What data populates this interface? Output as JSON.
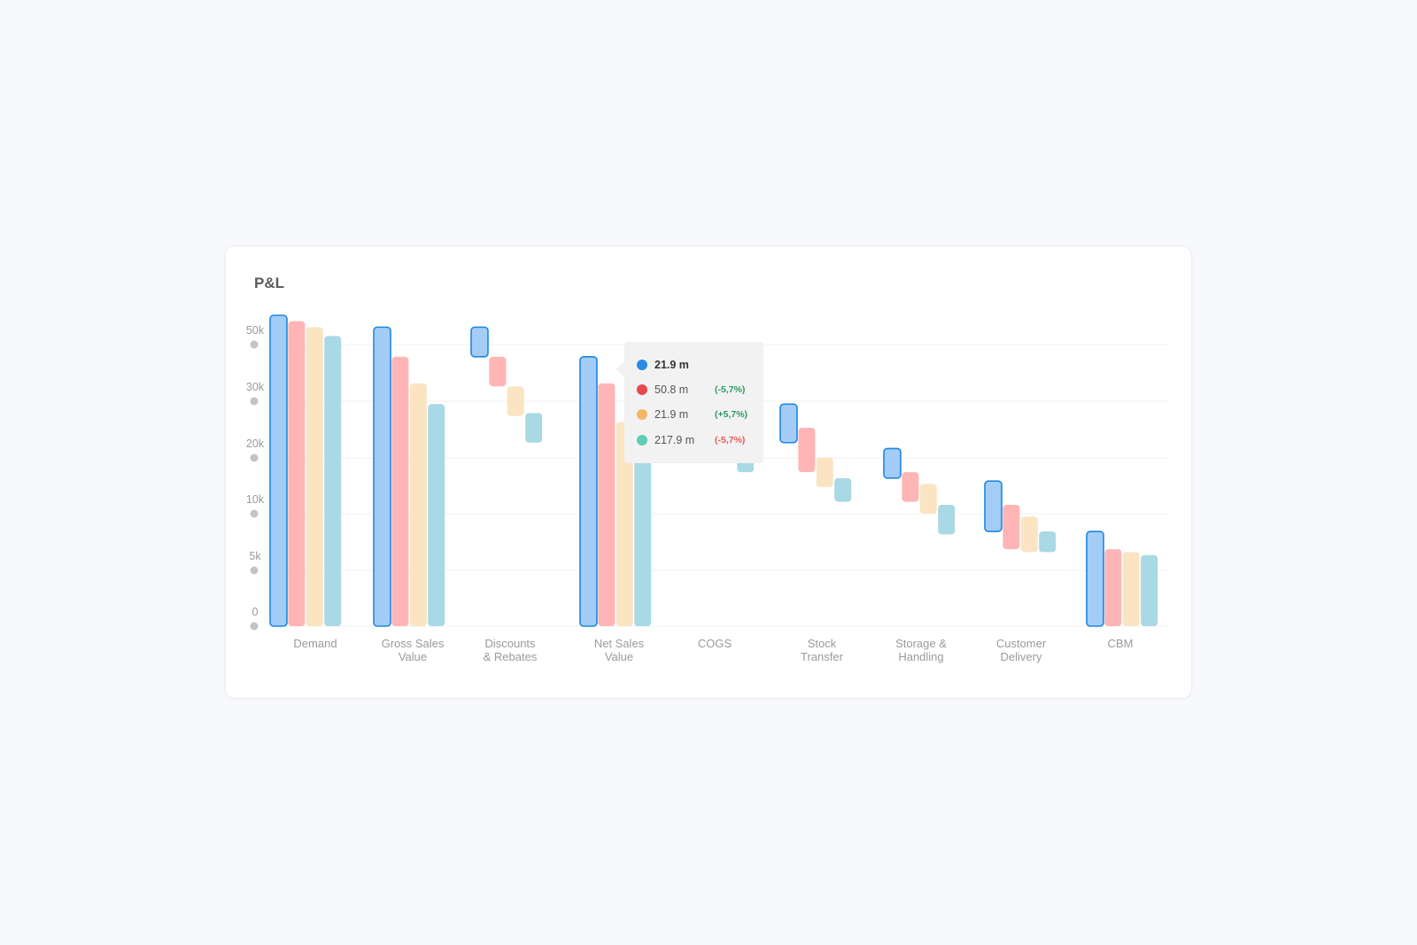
{
  "card": {
    "title": "P&L"
  },
  "colors": {
    "blue": "#a3cdf7",
    "blue_border": "#1f86e0",
    "red": "#ffb5b5",
    "yellow": "#fbe4c2",
    "teal": "#a9d9e4",
    "up": "#2e9a62",
    "down": "#e85a5a"
  },
  "tooltip": {
    "rows": [
      {
        "dot": "#2a8ae8",
        "value": "21.9 m",
        "change": ""
      },
      {
        "dot": "#e8474b",
        "value": "50.8 m",
        "change": "(-5,7%)",
        "change_color": "#2e9a62"
      },
      {
        "dot": "#f2b866",
        "value": "21.9 m",
        "change": "(+5,7%)",
        "change_color": "#2e9a62"
      },
      {
        "dot": "#5ccdb7",
        "value": "217.9 m",
        "change": "(-5,7%)",
        "change_color": "#e85a5a"
      }
    ]
  },
  "chart_data": {
    "type": "bar",
    "subtype": "waterfall",
    "title": "P&L",
    "yticks": [
      "0",
      "5k",
      "10k",
      "20k",
      "30k",
      "50k"
    ],
    "categories": [
      "Demand",
      "Gross Sales\nValue",
      "Discounts\n& Rebates",
      "Net Sales\nValue",
      "COGS",
      "Stock\nTransfer",
      "Storage &\nHandling",
      "Customer\nDelivery",
      "CBM"
    ],
    "series_bars": [
      [
        [
          0,
          52.5
        ],
        [
          0,
          51.5
        ],
        [
          0,
          50.5
        ],
        [
          0,
          49.0
        ]
      ],
      [
        [
          0,
          50.5
        ],
        [
          0,
          45.5
        ],
        [
          0,
          41.0
        ],
        [
          0,
          37.5
        ]
      ],
      [
        [
          45.5,
          50.5
        ],
        [
          40.5,
          45.5
        ],
        [
          35.5,
          40.5
        ],
        [
          31.0,
          36.0
        ]
      ],
      [
        [
          0,
          45.5
        ],
        [
          0,
          41.0
        ],
        [
          0,
          34.5
        ],
        [
          0,
          34.5
        ]
      ],
      [
        [
          null,
          null
        ],
        [
          null,
          null
        ],
        [
          null,
          null
        ],
        [
          26.0,
          28.5
        ]
      ],
      [
        [
          31.0,
          37.5
        ],
        [
          26.0,
          33.5
        ],
        [
          23.5,
          28.5
        ],
        [
          21.0,
          25.0
        ]
      ],
      [
        [
          25.0,
          30.0
        ],
        [
          21.0,
          26.0
        ],
        [
          19.0,
          24.0
        ],
        [
          15.5,
          20.5
        ]
      ],
      [
        [
          16.0,
          24.5
        ],
        [
          13.0,
          20.5
        ],
        [
          12.5,
          18.5
        ],
        [
          12.5,
          16.0
        ]
      ],
      [
        [
          0,
          16.0
        ],
        [
          0,
          13.0
        ],
        [
          0,
          12.5
        ],
        [
          0,
          12.0
        ]
      ]
    ],
    "ylim": [
      0,
      52.5
    ],
    "grid": true,
    "legend": "none"
  }
}
